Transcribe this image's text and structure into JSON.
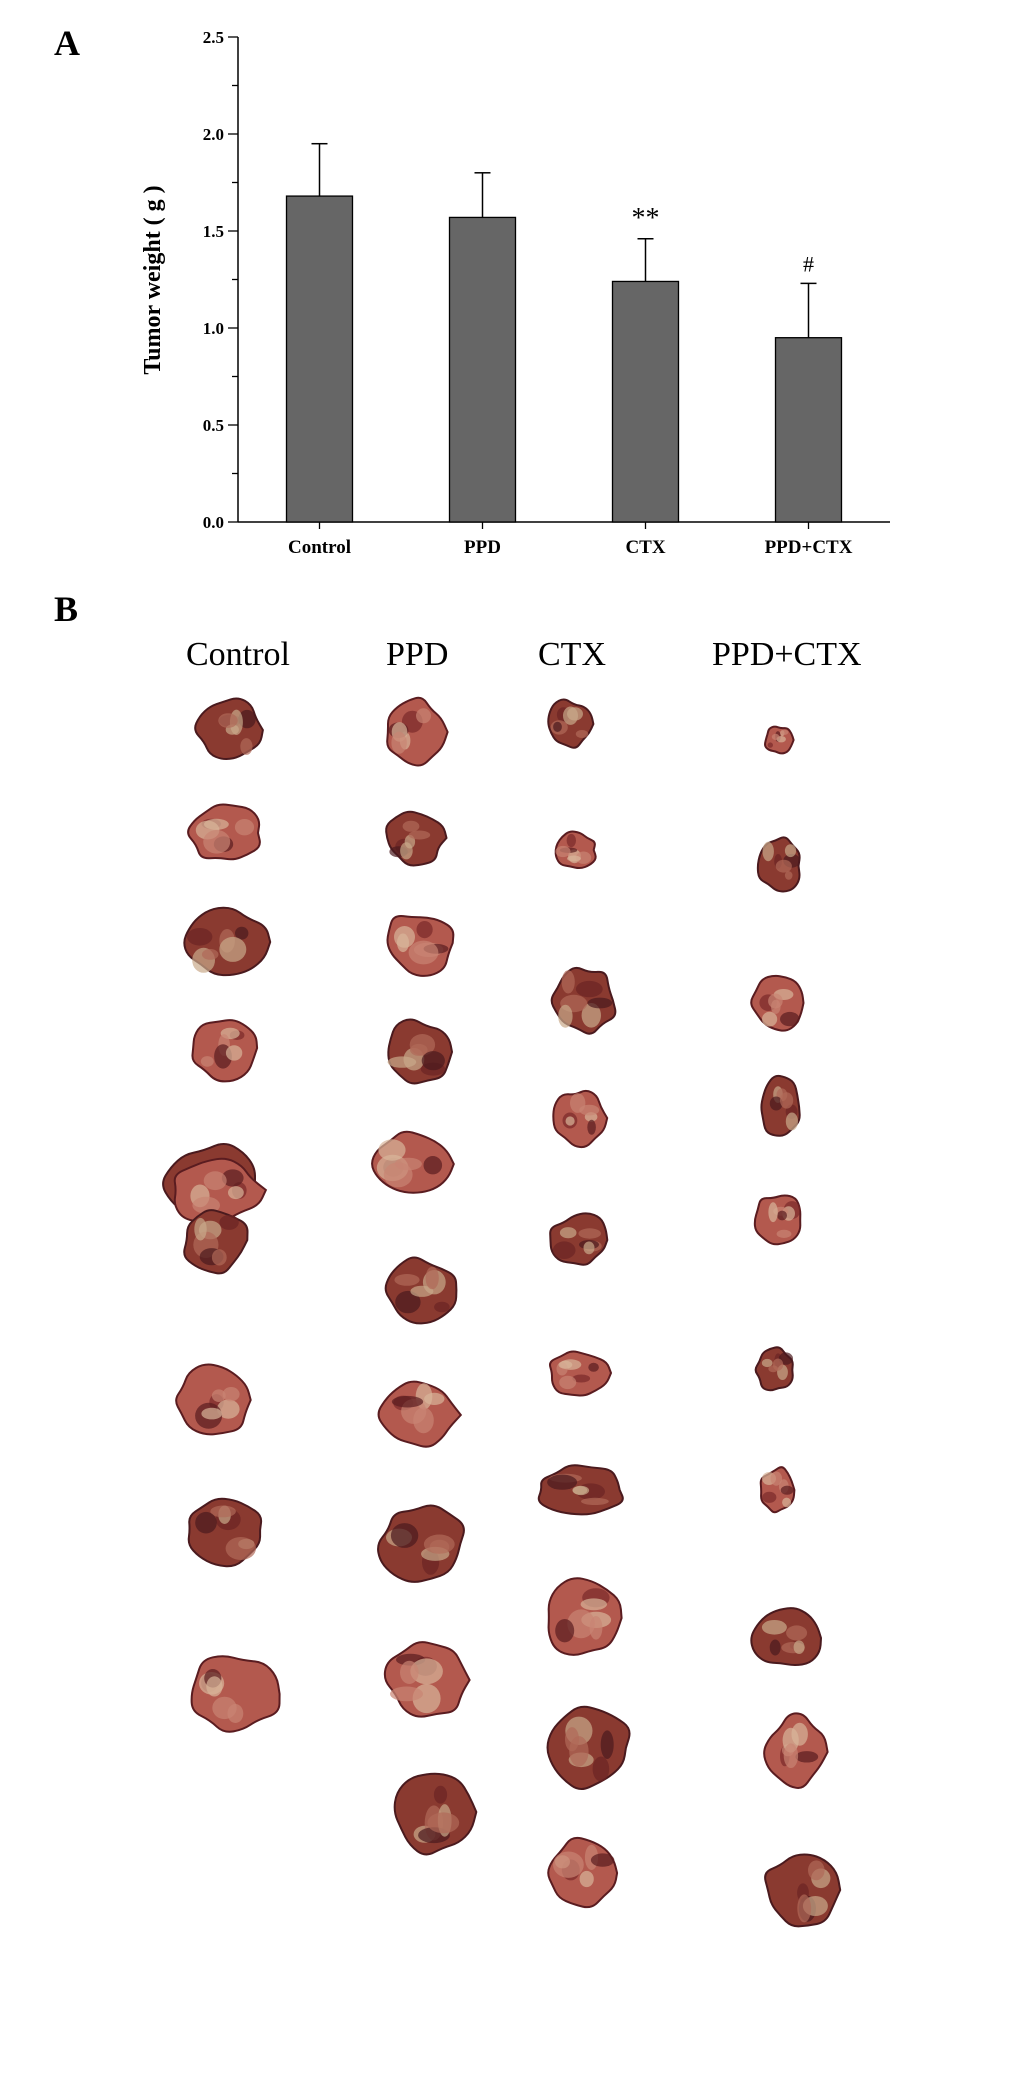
{
  "panels": {
    "a_label": "A",
    "b_label": "B"
  },
  "chart_data": {
    "type": "bar",
    "categories": [
      "Control",
      "PPD",
      "CTX",
      "PPD+CTX"
    ],
    "values": [
      1.68,
      1.57,
      1.24,
      0.95
    ],
    "error": [
      0.27,
      0.23,
      0.22,
      0.28
    ],
    "annotations": [
      "",
      "",
      "**",
      "#"
    ],
    "ylabel": "Tumor weight ( g )",
    "xlabel": "",
    "ylim": [
      0,
      2.5
    ],
    "yticks": [
      "0.0",
      "0.5",
      "1.0",
      "1.5",
      "2.0",
      "2.5"
    ],
    "grid": false,
    "bar_color": "#666666"
  },
  "photo_panel": {
    "column_headers": [
      "Control",
      "PPD",
      "CTX",
      "PPD+CTX"
    ]
  }
}
